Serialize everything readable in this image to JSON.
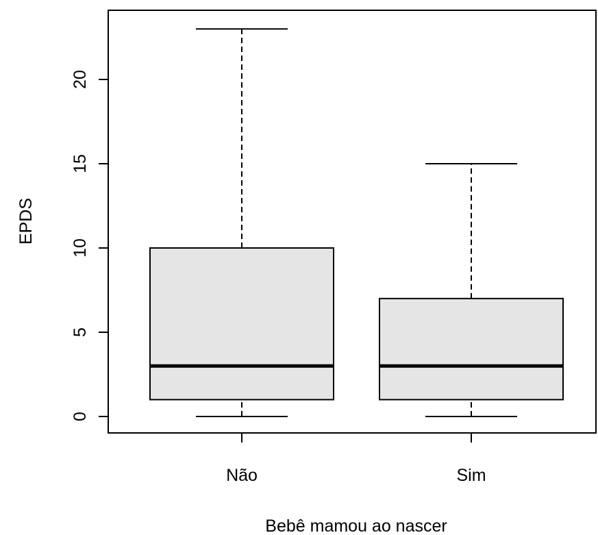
{
  "chart_data": {
    "type": "boxplot",
    "title": "",
    "xlabel": "Bebê mamou ao nascer",
    "ylabel": "EPDS",
    "ylim": [
      -1,
      24
    ],
    "yticks": [
      0,
      5,
      10,
      15,
      20
    ],
    "yticks_labels": [
      "0",
      "5",
      "10",
      "15",
      "20"
    ],
    "categories": [
      "Não",
      "Sim"
    ],
    "boxes": [
      {
        "category": "Não",
        "min": 0,
        "q1": 1,
        "median": 3,
        "q3": 10,
        "max": 23
      },
      {
        "category": "Sim",
        "min": 0,
        "q1": 1,
        "median": 3,
        "q3": 7,
        "max": 15
      }
    ],
    "box_fill": "#e5e5e5",
    "line_color": "#000000",
    "grid": false,
    "legend": "none"
  }
}
